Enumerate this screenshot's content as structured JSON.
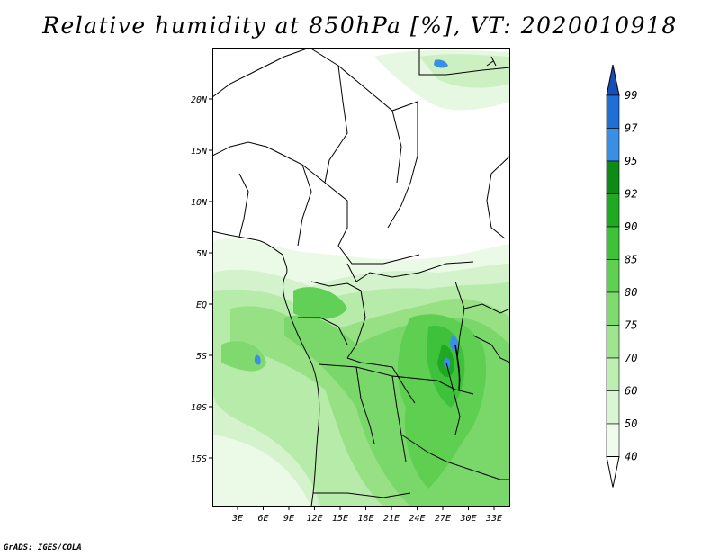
{
  "title": "Relative humidity at 850hPa [%], VT: 2020010918",
  "credit": "GrADS: IGES/COLA",
  "map": {
    "lat_labels": [
      "20N",
      "15N",
      "10N",
      "5N",
      "EQ",
      "5S",
      "10S",
      "15S"
    ],
    "lon_labels": [
      "3E",
      "6E",
      "9E",
      "12E",
      "15E",
      "18E",
      "21E",
      "24E",
      "27E",
      "30E",
      "33E"
    ]
  },
  "colorbar": {
    "labels": [
      "40",
      "50",
      "60",
      "70",
      "75",
      "80",
      "85",
      "90",
      "92",
      "95",
      "97",
      "99"
    ],
    "colors": [
      "#f0fbee",
      "#d9f5d2",
      "#bdeeb2",
      "#9fe58f",
      "#7fdb70",
      "#60d055",
      "#3ec23a",
      "#1faa23",
      "#0e8a17",
      "#3a8ee6",
      "#1f6fd6",
      "#1450b8"
    ]
  }
}
